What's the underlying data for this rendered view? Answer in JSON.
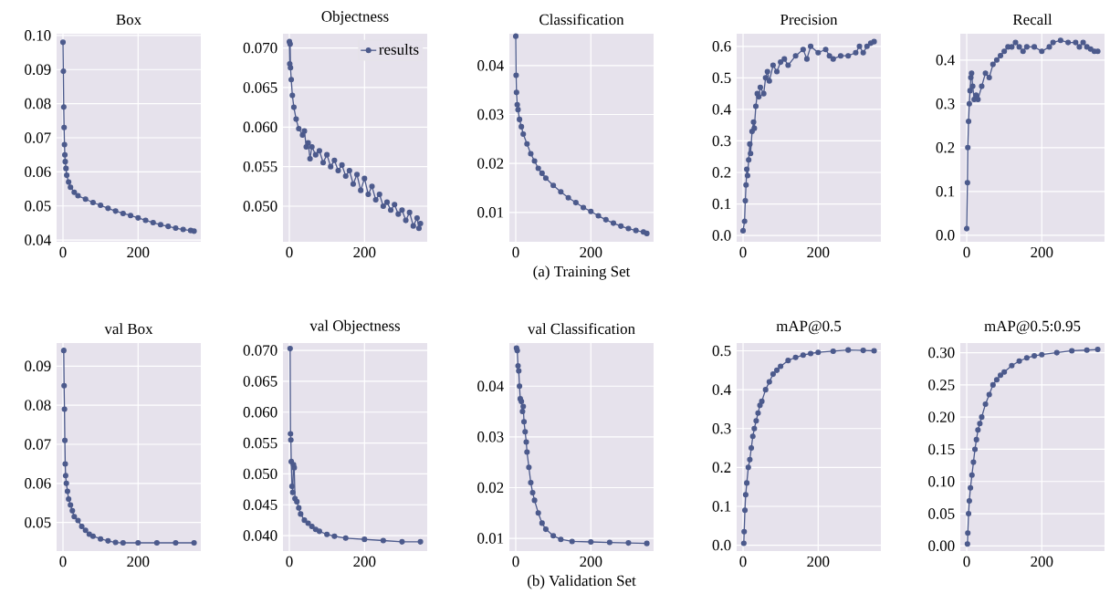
{
  "chart_data": [
    {
      "type": "line",
      "title": "Box",
      "marker": "circle",
      "grid": true,
      "xlim": [
        -17,
        367
      ],
      "xticks": [
        0,
        200
      ],
      "ylim": [
        0.0395,
        0.1005
      ],
      "yticks": [
        0.04,
        0.05,
        0.06,
        0.07,
        0.08,
        0.09,
        {
          "value": 0.1,
          "label": "0.10"
        }
      ],
      "series": [
        {
          "color": "#4c5a8c",
          "x": [
            0,
            1,
            2,
            3,
            4,
            5,
            6,
            8,
            10,
            15,
            20,
            30,
            40,
            60,
            80,
            100,
            120,
            140,
            160,
            180,
            200,
            220,
            240,
            260,
            280,
            300,
            320,
            340,
            349
          ],
          "values": [
            0.098,
            0.0895,
            0.079,
            0.073,
            0.068,
            0.065,
            0.063,
            0.061,
            0.059,
            0.057,
            0.0555,
            0.054,
            0.053,
            0.052,
            0.051,
            0.0502,
            0.0493,
            0.0485,
            0.0478,
            0.0472,
            0.0465,
            0.0458,
            0.0451,
            0.0445,
            0.044,
            0.0435,
            0.0431,
            0.0428,
            0.0426
          ]
        }
      ]
    },
    {
      "type": "line",
      "title": "Objectness",
      "marker": "circle",
      "grid": true,
      "legend": "top right",
      "xlim": [
        -17,
        367
      ],
      "xticks": [
        0,
        200
      ],
      "ylim": [
        0.0455,
        0.0718
      ],
      "yticks": [
        {
          "value": 0.05,
          "label": "0.050"
        },
        0.055,
        {
          "value": 0.06,
          "label": "0.060"
        },
        0.065,
        {
          "value": 0.07,
          "label": "0.070"
        }
      ],
      "series": [
        {
          "name": "results",
          "color": "#4c5a8c",
          "x": [
            0,
            1,
            2,
            3,
            5,
            8,
            12,
            18,
            25,
            35,
            40,
            45,
            50,
            55,
            60,
            70,
            80,
            90,
            100,
            110,
            120,
            130,
            140,
            150,
            160,
            170,
            180,
            190,
            200,
            210,
            220,
            230,
            240,
            250,
            260,
            270,
            280,
            290,
            300,
            310,
            320,
            330,
            340,
            345,
            349
          ],
          "values": [
            0.0708,
            0.068,
            0.0705,
            0.0675,
            0.066,
            0.064,
            0.0625,
            0.061,
            0.0598,
            0.059,
            0.0595,
            0.0575,
            0.058,
            0.056,
            0.0575,
            0.0565,
            0.057,
            0.0555,
            0.0565,
            0.055,
            0.0558,
            0.0545,
            0.0552,
            0.0538,
            0.0545,
            0.0528,
            0.054,
            0.052,
            0.0535,
            0.0515,
            0.0525,
            0.0508,
            0.0515,
            0.05,
            0.0505,
            0.0495,
            0.0502,
            0.049,
            0.0495,
            0.0482,
            0.0492,
            0.0475,
            0.0485,
            0.0472,
            0.0478
          ]
        }
      ]
    },
    {
      "type": "line",
      "title": "Classification",
      "marker": "circle",
      "grid": true,
      "annotations": [
        "(a) Training Set"
      ],
      "xlim": [
        -17,
        367
      ],
      "xticks": [
        0,
        200
      ],
      "ylim": [
        0.004,
        0.0465
      ],
      "yticks": [
        0.01,
        0.02,
        0.03,
        0.04
      ],
      "series": [
        {
          "color": "#4c5a8c",
          "x": [
            0,
            1,
            2,
            4,
            6,
            10,
            15,
            20,
            30,
            40,
            50,
            60,
            70,
            80,
            100,
            120,
            140,
            160,
            180,
            200,
            220,
            240,
            260,
            280,
            300,
            320,
            340,
            349
          ],
          "values": [
            0.046,
            0.038,
            0.0345,
            0.032,
            0.031,
            0.029,
            0.0275,
            0.026,
            0.024,
            0.022,
            0.0205,
            0.019,
            0.018,
            0.017,
            0.0155,
            0.0142,
            0.013,
            0.012,
            0.011,
            0.0102,
            0.0093,
            0.0085,
            0.0078,
            0.0072,
            0.0067,
            0.0063,
            0.006,
            0.0057
          ]
        }
      ]
    },
    {
      "type": "line",
      "title": "Precision",
      "marker": "circle",
      "grid": true,
      "xlim": [
        -17,
        367
      ],
      "xticks": [
        0,
        200
      ],
      "ylim": [
        -0.02,
        0.64
      ],
      "yticks": [
        {
          "value": 0,
          "label": "0.0"
        },
        0.1,
        0.2,
        0.3,
        0.4,
        0.5,
        0.6
      ],
      "series": [
        {
          "color": "#4c5a8c",
          "x": [
            0,
            4,
            6,
            8,
            10,
            12,
            15,
            18,
            20,
            24,
            28,
            30,
            34,
            38,
            42,
            46,
            55,
            60,
            65,
            70,
            80,
            90,
            100,
            110,
            120,
            140,
            160,
            170,
            180,
            200,
            220,
            230,
            240,
            260,
            280,
            300,
            310,
            320,
            330,
            340,
            349
          ],
          "values": [
            0.015,
            0.045,
            0.11,
            0.16,
            0.21,
            0.19,
            0.24,
            0.29,
            0.26,
            0.33,
            0.36,
            0.34,
            0.41,
            0.45,
            0.44,
            0.47,
            0.45,
            0.5,
            0.52,
            0.49,
            0.54,
            0.52,
            0.55,
            0.56,
            0.54,
            0.57,
            0.59,
            0.56,
            0.6,
            0.58,
            0.59,
            0.57,
            0.56,
            0.57,
            0.57,
            0.58,
            0.6,
            0.58,
            0.6,
            0.61,
            0.615
          ]
        }
      ]
    },
    {
      "type": "line",
      "title": "Recall",
      "marker": "circle",
      "grid": true,
      "xlim": [
        -17,
        367
      ],
      "xticks": [
        0,
        200
      ],
      "ylim": [
        -0.015,
        0.46
      ],
      "yticks": [
        {
          "value": 0,
          "label": "0.0"
        },
        0.1,
        0.2,
        0.3,
        0.4
      ],
      "series": [
        {
          "color": "#4c5a8c",
          "x": [
            0,
            2,
            3,
            5,
            7,
            9,
            11,
            13,
            16,
            20,
            25,
            30,
            40,
            50,
            60,
            70,
            80,
            90,
            100,
            110,
            120,
            130,
            140,
            150,
            160,
            180,
            200,
            220,
            230,
            250,
            270,
            290,
            300,
            310,
            320,
            330,
            340,
            349
          ],
          "values": [
            0.015,
            0.12,
            0.2,
            0.26,
            0.3,
            0.33,
            0.36,
            0.37,
            0.34,
            0.31,
            0.32,
            0.31,
            0.34,
            0.37,
            0.36,
            0.39,
            0.4,
            0.41,
            0.42,
            0.43,
            0.43,
            0.44,
            0.43,
            0.42,
            0.43,
            0.43,
            0.42,
            0.43,
            0.44,
            0.445,
            0.44,
            0.44,
            0.43,
            0.44,
            0.43,
            0.425,
            0.42,
            0.42
          ]
        }
      ]
    },
    {
      "type": "line",
      "title": "val Box",
      "marker": "circle",
      "grid": true,
      "xlim": [
        -17,
        367
      ],
      "xticks": [
        0,
        200
      ],
      "ylim": [
        0.0427,
        0.0959
      ],
      "yticks": [
        0.05,
        0.06,
        0.07,
        0.08,
        0.09
      ],
      "series": [
        {
          "color": "#4c5a8c",
          "x": [
            2,
            3,
            4,
            5,
            6,
            7,
            9,
            12,
            15,
            20,
            25,
            30,
            40,
            50,
            60,
            70,
            80,
            100,
            120,
            140,
            160,
            200,
            250,
            300,
            349
          ],
          "values": [
            0.094,
            0.085,
            0.079,
            0.071,
            0.065,
            0.062,
            0.06,
            0.058,
            0.056,
            0.0545,
            0.053,
            0.0515,
            0.0505,
            0.049,
            0.048,
            0.047,
            0.0465,
            0.0458,
            0.0453,
            0.0449,
            0.0448,
            0.0448,
            0.0448,
            0.0448,
            0.0448
          ]
        }
      ]
    },
    {
      "type": "line",
      "title": "val Objectness",
      "marker": "circle",
      "grid": true,
      "xlim": [
        -17,
        367
      ],
      "xticks": [
        0,
        200
      ],
      "ylim": [
        0.0375,
        0.0712
      ],
      "yticks": [
        {
          "value": 0.04,
          "label": "0.040"
        },
        0.045,
        {
          "value": 0.05,
          "label": "0.050"
        },
        0.055,
        {
          "value": 0.06,
          "label": "0.060"
        },
        0.065,
        {
          "value": 0.07,
          "label": "0.070"
        }
      ],
      "series": [
        {
          "color": "#4c5a8c",
          "x": [
            2,
            3,
            4,
            5,
            7,
            9,
            11,
            13,
            15,
            20,
            25,
            30,
            40,
            50,
            60,
            70,
            80,
            100,
            120,
            150,
            200,
            250,
            300,
            349
          ],
          "values": [
            0.0703,
            0.0565,
            0.0555,
            0.052,
            0.048,
            0.047,
            0.0515,
            0.051,
            0.046,
            0.0455,
            0.0445,
            0.0435,
            0.0425,
            0.042,
            0.0415,
            0.041,
            0.0407,
            0.0402,
            0.0399,
            0.0396,
            0.0394,
            0.0392,
            0.039,
            0.039
          ]
        }
      ]
    },
    {
      "type": "line",
      "title": "val Classification",
      "marker": "circle",
      "grid": true,
      "annotations": [
        "(b) Validation Set"
      ],
      "xlim": [
        -17,
        367
      ],
      "xticks": [
        0,
        200
      ],
      "ylim": [
        0.0075,
        0.0485
      ],
      "yticks": [
        0.01,
        0.02,
        0.03,
        0.04
      ],
      "series": [
        {
          "color": "#4c5a8c",
          "x": [
            2,
            4,
            6,
            8,
            10,
            12,
            15,
            18,
            20,
            22,
            25,
            28,
            30,
            35,
            40,
            45,
            50,
            60,
            70,
            80,
            100,
            120,
            150,
            200,
            250,
            300,
            349
          ],
          "values": [
            0.0475,
            0.047,
            0.044,
            0.043,
            0.04,
            0.0375,
            0.037,
            0.035,
            0.036,
            0.033,
            0.031,
            0.029,
            0.027,
            0.024,
            0.021,
            0.019,
            0.0175,
            0.015,
            0.013,
            0.0118,
            0.0105,
            0.0098,
            0.0094,
            0.0093,
            0.0092,
            0.0091,
            0.009
          ]
        }
      ]
    },
    {
      "type": "line",
      "title": "mAP@0.5",
      "marker": "circle",
      "grid": true,
      "xlim": [
        -17,
        367
      ],
      "xticks": [
        0,
        200
      ],
      "ylim": [
        -0.015,
        0.52
      ],
      "yticks": [
        {
          "value": 0,
          "label": "0.0"
        },
        0.1,
        0.2,
        0.3,
        0.4,
        0.5
      ],
      "series": [
        {
          "color": "#4c5a8c",
          "x": [
            2,
            3,
            5,
            7,
            10,
            14,
            18,
            22,
            26,
            30,
            35,
            40,
            45,
            50,
            60,
            70,
            80,
            90,
            100,
            120,
            140,
            160,
            180,
            200,
            240,
            280,
            320,
            349
          ],
          "values": [
            0.005,
            0.035,
            0.09,
            0.13,
            0.16,
            0.2,
            0.22,
            0.25,
            0.28,
            0.3,
            0.32,
            0.34,
            0.36,
            0.37,
            0.4,
            0.42,
            0.44,
            0.45,
            0.46,
            0.475,
            0.483,
            0.489,
            0.493,
            0.496,
            0.499,
            0.502,
            0.501,
            0.5
          ]
        }
      ]
    },
    {
      "type": "line",
      "title": "mAP@0.5:0.95",
      "marker": "circle",
      "grid": true,
      "xlim": [
        -17,
        367
      ],
      "xticks": [
        0,
        200
      ],
      "ylim": [
        -0.008,
        0.315
      ],
      "yticks": [
        {
          "value": 0,
          "label": "0.00"
        },
        0.05,
        {
          "value": 0.1,
          "label": "0.10"
        },
        0.15,
        {
          "value": 0.2,
          "label": "0.20"
        },
        0.25,
        {
          "value": 0.3,
          "label": "0.30"
        }
      ],
      "series": [
        {
          "color": "#4c5a8c",
          "x": [
            2,
            3,
            5,
            7,
            10,
            14,
            18,
            22,
            26,
            30,
            35,
            40,
            50,
            60,
            70,
            80,
            90,
            100,
            120,
            140,
            160,
            180,
            200,
            240,
            280,
            320,
            349
          ],
          "values": [
            0.003,
            0.02,
            0.05,
            0.07,
            0.09,
            0.11,
            0.13,
            0.15,
            0.165,
            0.18,
            0.19,
            0.2,
            0.22,
            0.235,
            0.25,
            0.258,
            0.265,
            0.27,
            0.28,
            0.287,
            0.292,
            0.295,
            0.297,
            0.3,
            0.303,
            0.304,
            0.305
          ]
        }
      ]
    }
  ]
}
